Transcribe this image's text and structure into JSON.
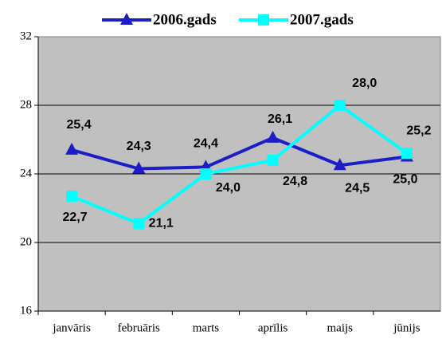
{
  "chart_data": {
    "type": "line",
    "categories": [
      "janvāris",
      "februāris",
      "marts",
      "aprīlis",
      "maijs",
      "jūnijs"
    ],
    "series": [
      {
        "name": "2006.gads",
        "color": "#1c1cc8",
        "values": [
          25.4,
          24.3,
          24.4,
          26.1,
          24.5,
          25.0
        ],
        "value_labels": [
          "25,4",
          "24,3",
          "24,4",
          "26,1",
          "24,5",
          "25,0"
        ]
      },
      {
        "name": "2007.gads",
        "color": "#00ffff",
        "values": [
          22.7,
          21.1,
          24.0,
          24.8,
          28.0,
          25.2
        ],
        "value_labels": [
          "22,7",
          "21,1",
          "24,0",
          "24,8",
          "28,0",
          "25,2"
        ]
      }
    ],
    "ylim": [
      16,
      32
    ],
    "yticks": [
      16,
      20,
      24,
      28,
      32
    ],
    "grid": true,
    "legend": "top"
  }
}
